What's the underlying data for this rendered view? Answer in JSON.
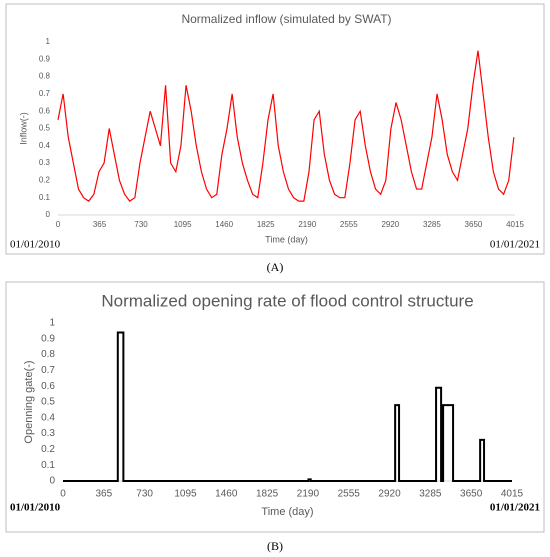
{
  "chart_data": [
    {
      "type": "line",
      "title": "Normalized inflow (simulated by SWAT)",
      "x_label": "Time (day)",
      "y_label": "Inflow(-)",
      "start_label": "01/01/2010",
      "end_label": "01/01/2021",
      "caption": "(A)",
      "xlim": [
        0,
        4015
      ],
      "xticks": [
        0,
        365,
        730,
        1095,
        1460,
        1825,
        2190,
        2555,
        2920,
        3285,
        3650,
        4015
      ],
      "ylim": [
        0,
        1
      ],
      "yticks": [
        0,
        0.1,
        0.2,
        0.3,
        0.4,
        0.5,
        0.6,
        0.7,
        0.8,
        0.9,
        1
      ],
      "series": [
        {
          "name": "Inflow",
          "color": "#ff0000",
          "x": [
            0,
            45,
            90,
            135,
            180,
            225,
            270,
            315,
            360,
            405,
            450,
            495,
            540,
            585,
            630,
            675,
            720,
            765,
            810,
            855,
            900,
            945,
            990,
            1035,
            1080,
            1125,
            1170,
            1215,
            1260,
            1305,
            1350,
            1395,
            1440,
            1485,
            1530,
            1575,
            1620,
            1665,
            1710,
            1755,
            1800,
            1845,
            1890,
            1935,
            1980,
            2025,
            2070,
            2115,
            2160,
            2205,
            2250,
            2295,
            2340,
            2385,
            2430,
            2475,
            2520,
            2565,
            2610,
            2655,
            2700,
            2745,
            2790,
            2835,
            2880,
            2925,
            2970,
            3015,
            3060,
            3105,
            3150,
            3195,
            3240,
            3285,
            3330,
            3375,
            3420,
            3465,
            3510,
            3555,
            3600,
            3645,
            3690,
            3735,
            3780,
            3825,
            3870,
            3915,
            3960,
            4005
          ],
          "values": [
            0.55,
            0.7,
            0.45,
            0.3,
            0.15,
            0.1,
            0.08,
            0.12,
            0.25,
            0.3,
            0.5,
            0.35,
            0.2,
            0.12,
            0.08,
            0.1,
            0.3,
            0.45,
            0.6,
            0.5,
            0.4,
            0.75,
            0.3,
            0.25,
            0.4,
            0.75,
            0.6,
            0.4,
            0.25,
            0.15,
            0.1,
            0.12,
            0.35,
            0.5,
            0.7,
            0.45,
            0.3,
            0.2,
            0.12,
            0.1,
            0.3,
            0.55,
            0.7,
            0.4,
            0.25,
            0.15,
            0.1,
            0.08,
            0.08,
            0.25,
            0.55,
            0.6,
            0.35,
            0.2,
            0.12,
            0.1,
            0.1,
            0.3,
            0.55,
            0.6,
            0.4,
            0.25,
            0.15,
            0.12,
            0.2,
            0.5,
            0.65,
            0.55,
            0.4,
            0.25,
            0.15,
            0.15,
            0.3,
            0.45,
            0.7,
            0.55,
            0.35,
            0.25,
            0.2,
            0.35,
            0.5,
            0.75,
            0.95,
            0.7,
            0.45,
            0.25,
            0.15,
            0.12,
            0.2,
            0.45
          ]
        }
      ]
    },
    {
      "type": "line",
      "title": "Normalized opening rate of flood control structure",
      "x_label": "Time (day)",
      "y_label": "Openning gate(-)",
      "start_label": "01/01/2010",
      "end_label": "01/01/2021",
      "caption": "(B)",
      "xlim": [
        0,
        4015
      ],
      "xticks": [
        0,
        365,
        730,
        1095,
        1460,
        1825,
        2190,
        2555,
        2920,
        3285,
        3650,
        4015
      ],
      "ylim": [
        0,
        1
      ],
      "yticks": [
        0,
        0.1,
        0.2,
        0.3,
        0.4,
        0.5,
        0.6,
        0.7,
        0.8,
        0.9,
        1
      ],
      "series": [
        {
          "name": "Opening gate",
          "color": "#000000",
          "x": [
            0,
            490,
            490,
            540,
            540,
            2195,
            2195,
            2215,
            2215,
            2970,
            2970,
            3005,
            3005,
            3336,
            3336,
            3381,
            3381,
            3399,
            3399,
            3488,
            3488,
            3730,
            3730,
            3765,
            3765,
            4015
          ],
          "values": [
            0,
            0,
            0.94,
            0.94,
            0,
            0,
            0.01,
            0.01,
            0,
            0,
            0.48,
            0.48,
            0,
            0,
            0.59,
            0.59,
            0,
            0,
            0.48,
            0.48,
            0,
            0,
            0.26,
            0.26,
            0,
            0
          ]
        }
      ]
    }
  ]
}
